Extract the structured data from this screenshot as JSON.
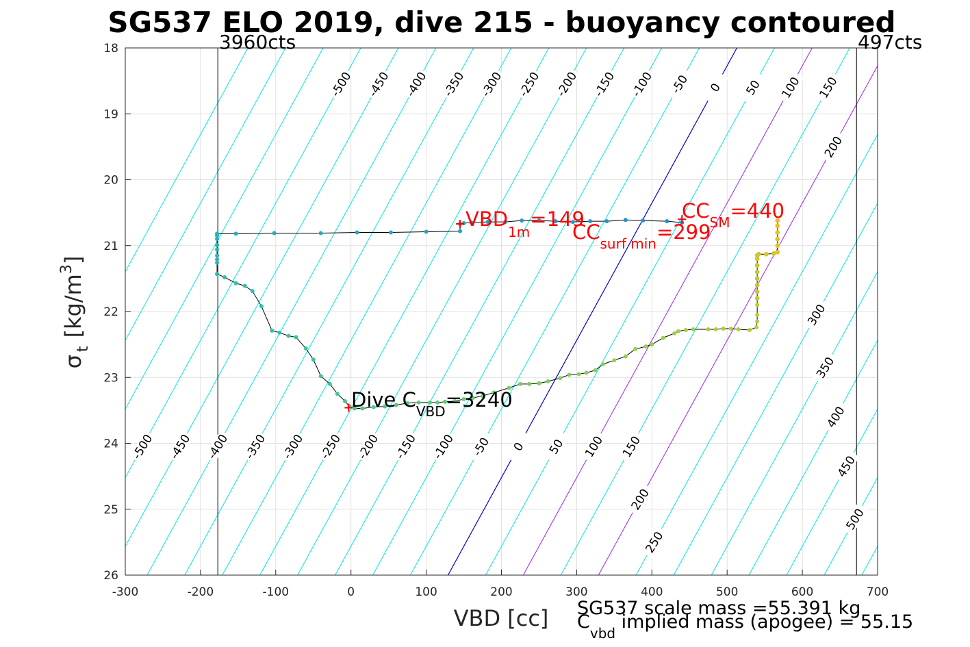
{
  "chart_data": {
    "type": "scatter",
    "title": "SG537 ELO 2019, dive 215 - buoyancy contoured",
    "xlabel": "VBD [cc]",
    "ylabel_main": "σ",
    "ylabel_sub": "t",
    "ylabel_units": "[kg/m",
    "ylabel_sup": "3",
    "ylabel_close": "]",
    "xlim": [
      -300,
      700
    ],
    "ylim": [
      18,
      26
    ],
    "y_reversed": true,
    "grid": true,
    "xticks": [
      -300,
      -200,
      -100,
      0,
      100,
      200,
      300,
      400,
      500,
      600,
      700
    ],
    "yticks": [
      18,
      19,
      20,
      21,
      22,
      23,
      24,
      25,
      26
    ],
    "xtick_labels": [
      "-300",
      "-200",
      "-100",
      "0",
      "100",
      "200",
      "300",
      "400",
      "500",
      "600",
      "700"
    ],
    "ytick_labels": [
      "18",
      "19",
      "20",
      "21",
      "22",
      "23",
      "24",
      "25",
      "26"
    ],
    "vbd_limit_left": {
      "x": -177,
      "label": "3960cts"
    },
    "vbd_limit_right": {
      "x": 672,
      "label": "497cts"
    },
    "contour_slope_cc_per_sigma": -48,
    "contour_ref_x_at_sigma": 26,
    "contour_ref_zero_x": 129,
    "contours": {
      "levels": [
        -500,
        -450,
        -400,
        -350,
        -300,
        -250,
        -200,
        -150,
        -100,
        -50,
        0,
        50,
        100,
        150,
        200,
        250,
        300,
        350,
        400,
        450,
        500
      ],
      "level_labels": [
        "-500",
        "-450",
        "-400",
        "-350",
        "-300",
        "-250",
        "-200",
        "-150",
        "-100",
        "-50",
        "0",
        "50",
        "100",
        "150",
        "200",
        "250",
        "300",
        "350",
        "400",
        "450",
        "500"
      ],
      "zero_color": "#0000cc",
      "purple_levels": [
        100,
        200
      ],
      "purple_color": "#a020f0",
      "other_color": "#00e6e6",
      "top_labels": [
        {
          "level": -500,
          "text": "-500"
        },
        {
          "level": -450,
          "text": "-450"
        },
        {
          "level": -400,
          "text": "-400"
        },
        {
          "level": -350,
          "text": "-350"
        },
        {
          "level": -300,
          "text": "-300"
        },
        {
          "level": -250,
          "text": "-250"
        },
        {
          "level": -200,
          "text": "-200"
        },
        {
          "level": -150,
          "text": "-150"
        },
        {
          "level": -100,
          "text": "-100"
        },
        {
          "level": -50,
          "text": "-50"
        },
        {
          "level": 0,
          "text": "0"
        },
        {
          "level": 50,
          "text": "50"
        },
        {
          "level": 100,
          "text": "100"
        },
        {
          "level": 150,
          "text": "150"
        }
      ],
      "bottom_labels": [
        {
          "level": -500,
          "text": "-500"
        },
        {
          "level": -450,
          "text": "-450"
        },
        {
          "level": -400,
          "text": "-400"
        },
        {
          "level": -350,
          "text": "-350"
        },
        {
          "level": -300,
          "text": "-300"
        },
        {
          "level": -250,
          "text": "-250"
        },
        {
          "level": -200,
          "text": "-200"
        },
        {
          "level": -150,
          "text": "-150"
        },
        {
          "level": -100,
          "text": "-100"
        },
        {
          "level": -50,
          "text": "-50"
        },
        {
          "level": 0,
          "text": "0"
        },
        {
          "level": 50,
          "text": "50"
        },
        {
          "level": 100,
          "text": "100"
        },
        {
          "level": 150,
          "text": "150"
        },
        {
          "level": 200,
          "text": "200"
        },
        {
          "level": 250,
          "text": "250"
        }
      ],
      "right_labels": [
        {
          "level": 200,
          "sigma": 19.5,
          "text": "200"
        },
        {
          "level": 300,
          "sigma": 22.05,
          "text": "300"
        },
        {
          "level": 350,
          "sigma": 22.85,
          "text": "350"
        },
        {
          "level": 400,
          "sigma": 23.6,
          "text": "400"
        },
        {
          "level": 450,
          "sigma": 24.35,
          "text": "450"
        },
        {
          "level": 500,
          "sigma": 25.15,
          "text": "500"
        }
      ]
    },
    "series": [
      {
        "points": [
          [
            440,
            20.65
          ],
          [
            420,
            20.63
          ],
          [
            388,
            20.62
          ],
          [
            365,
            20.61
          ],
          [
            340,
            20.63
          ],
          [
            318,
            20.63
          ],
          [
            295,
            20.64
          ],
          [
            272,
            20.63
          ],
          [
            250,
            20.62
          ],
          [
            227,
            20.62
          ],
          [
            205,
            20.64
          ],
          [
            182,
            20.64
          ],
          [
            160,
            20.65
          ],
          [
            150,
            20.66
          ],
          [
            145,
            20.67
          ],
          [
            145,
            20.78
          ],
          [
            100,
            20.79
          ],
          [
            53,
            20.8
          ],
          [
            8,
            20.8
          ],
          [
            -40,
            20.81
          ],
          [
            -102,
            20.81
          ],
          [
            -153,
            20.82
          ],
          [
            -178,
            20.82
          ],
          [
            -178,
            20.85
          ],
          [
            -178,
            20.9
          ],
          [
            -178,
            20.99
          ],
          [
            -178,
            21.06
          ],
          [
            -178,
            21.15
          ],
          [
            -178,
            21.21
          ],
          [
            -178,
            21.26
          ],
          [
            -178,
            21.43
          ],
          [
            -168,
            21.48
          ],
          [
            -153,
            21.57
          ],
          [
            -141,
            21.61
          ],
          [
            -131,
            21.69
          ],
          [
            -119,
            21.92
          ],
          [
            -105,
            22.29
          ],
          [
            -95,
            22.32
          ],
          [
            -83,
            22.37
          ],
          [
            -73,
            22.39
          ],
          [
            -60,
            22.56
          ],
          [
            -50,
            22.73
          ],
          [
            -40,
            22.98
          ],
          [
            -28,
            23.1
          ],
          [
            -18,
            23.25
          ],
          [
            -8,
            23.36
          ],
          [
            -2,
            23.44
          ],
          [
            5,
            23.47
          ],
          [
            15,
            23.47
          ],
          [
            30,
            23.45
          ],
          [
            45,
            23.44
          ],
          [
            60,
            23.42
          ],
          [
            75,
            23.39
          ],
          [
            90,
            23.38
          ],
          [
            105,
            23.38
          ],
          [
            115,
            23.38
          ],
          [
            125,
            23.37
          ],
          [
            138,
            23.36
          ],
          [
            150,
            23.33
          ],
          [
            162,
            23.31
          ],
          [
            175,
            23.28
          ],
          [
            190,
            23.23
          ],
          [
            210,
            23.16
          ],
          [
            225,
            23.1
          ],
          [
            237,
            23.1
          ],
          [
            250,
            23.09
          ],
          [
            262,
            23.06
          ],
          [
            278,
            23.01
          ],
          [
            290,
            22.96
          ],
          [
            303,
            22.95
          ],
          [
            313,
            22.93
          ],
          [
            325,
            22.89
          ],
          [
            335,
            22.8
          ],
          [
            350,
            22.74
          ],
          [
            365,
            22.68
          ],
          [
            378,
            22.57
          ],
          [
            392,
            22.53
          ],
          [
            400,
            22.5
          ],
          [
            415,
            22.4
          ],
          [
            430,
            22.33
          ],
          [
            435,
            22.3
          ],
          [
            445,
            22.28
          ],
          [
            455,
            22.27
          ],
          [
            475,
            22.27
          ],
          [
            485,
            22.27
          ],
          [
            495,
            22.26
          ],
          [
            505,
            22.26
          ],
          [
            515,
            22.27
          ],
          [
            530,
            22.28
          ],
          [
            539,
            22.24
          ],
          [
            540,
            22.15
          ],
          [
            540,
            22.05
          ],
          [
            540,
            21.9
          ],
          [
            540,
            21.8
          ],
          [
            540,
            21.7
          ],
          [
            540,
            21.6
          ],
          [
            540,
            21.5
          ],
          [
            540,
            21.4
          ],
          [
            540,
            21.3
          ],
          [
            540,
            21.2
          ],
          [
            540,
            21.15
          ],
          [
            542,
            21.13
          ],
          [
            552,
            21.13
          ],
          [
            562,
            21.12
          ],
          [
            567,
            21.1
          ],
          [
            567,
            21.0
          ],
          [
            567,
            20.9
          ],
          [
            567,
            20.8
          ],
          [
            567,
            20.7
          ],
          [
            567,
            20.62
          ]
        ]
      }
    ],
    "markers": {
      "vbd_1m": {
        "x": 145,
        "y": 20.67
      },
      "cc_sm": {
        "x": 440,
        "y": 20.6
      },
      "dive_cvbd": {
        "x": -3,
        "y": 23.46
      }
    },
    "annotations": {
      "vbd_1m": {
        "main": "VBD",
        "sub": "1m",
        "tail": "=149"
      },
      "cc_surf_min": {
        "main": "CC",
        "sub": "surf min",
        "tail": "=299"
      },
      "cc_sm": {
        "main": "CC",
        "sub": "SM",
        "tail": "=440"
      },
      "dive_cvbd": {
        "main": "Dive C",
        "sub": "VBD",
        "tail": "=3240"
      }
    },
    "footer": {
      "line1": "SG537 scale mass =55.391 kg",
      "line2_main": "C",
      "line2_sub": "vbd",
      "line2_tail": " implied mass (apogee) = 55.15"
    },
    "colors": {
      "track_line": "#000000",
      "marker_red": "#ff0000",
      "point_start": "#1f8fd6",
      "point_mid": "#2ec4a8",
      "point_late": "#8fd14f",
      "point_end": "#e8c328"
    }
  }
}
